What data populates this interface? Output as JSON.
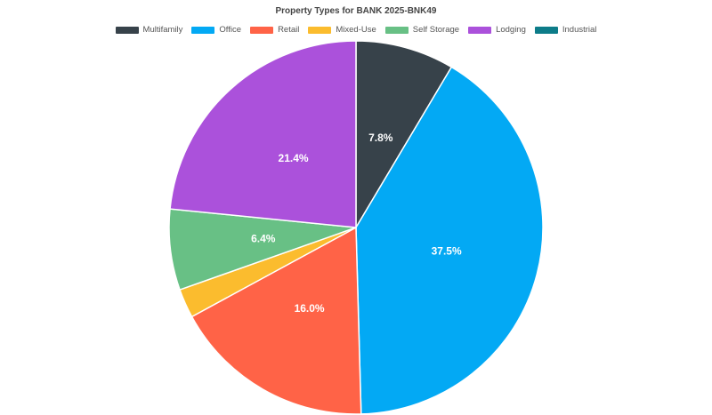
{
  "chart_data": {
    "type": "pie",
    "title": "Property Types for BANK 2025-BNK49",
    "legend_position": "top",
    "series": [
      {
        "name": "Multifamily",
        "value": 7.8,
        "label": "7.8%",
        "color": "#37424a"
      },
      {
        "name": "Office",
        "value": 37.5,
        "label": "37.5%",
        "color": "#03a9f4"
      },
      {
        "name": "Retail",
        "value": 16.0,
        "label": "16.0%",
        "color": "#ff6347"
      },
      {
        "name": "Mixed-Use",
        "value": 2.3,
        "label": "",
        "color": "#fbbc2e"
      },
      {
        "name": "Self Storage",
        "value": 6.4,
        "label": "6.4%",
        "color": "#68c085"
      },
      {
        "name": "Lodging",
        "value": 21.4,
        "label": "21.4%",
        "color": "#ab51db"
      },
      {
        "name": "Industrial",
        "value": 0.0,
        "label": "",
        "color": "#0d7c89"
      }
    ]
  }
}
